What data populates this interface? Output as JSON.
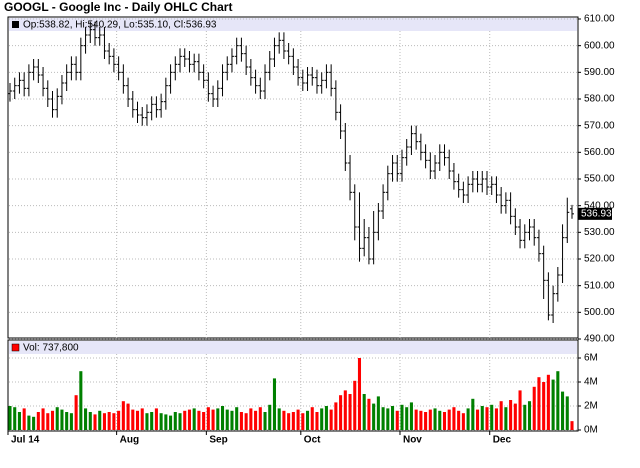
{
  "chart_data": [
    {
      "type": "ohlc",
      "title": "GOOGL - Google Inc - Daily OHLC Chart",
      "legend_text": "Op:538.82, Hi:540.29, Lo:535.10, Cl:536.93",
      "color": "#000000",
      "grid": true,
      "categories": [
        "Jul 14",
        null,
        null,
        null,
        null,
        null,
        null,
        null,
        null,
        null,
        null,
        null,
        null,
        null,
        null,
        null,
        null,
        null,
        null,
        null,
        null,
        null,
        null,
        "Aug",
        null,
        null,
        null,
        null,
        null,
        null,
        null,
        null,
        null,
        null,
        null,
        null,
        null,
        null,
        null,
        null,
        null,
        null,
        "Sep",
        null,
        null,
        null,
        null,
        null,
        null,
        null,
        null,
        null,
        null,
        null,
        null,
        null,
        null,
        null,
        null,
        null,
        null,
        null,
        "Oct",
        null,
        null,
        null,
        null,
        null,
        null,
        null,
        null,
        null,
        null,
        null,
        null,
        null,
        null,
        null,
        null,
        null,
        null,
        null,
        null,
        "Nov",
        null,
        null,
        null,
        null,
        null,
        null,
        null,
        null,
        null,
        null,
        null,
        null,
        null,
        null,
        null,
        null,
        null,
        null,
        "Dec",
        null,
        null,
        null,
        null,
        null,
        null,
        null,
        null,
        null,
        null,
        null,
        null,
        null,
        null,
        null,
        null,
        null
      ],
      "open": [
        582,
        583,
        585,
        587,
        584,
        590,
        592,
        589,
        584,
        580,
        576,
        581,
        586,
        590,
        593,
        590,
        600,
        604,
        606,
        603,
        604,
        598,
        596,
        593,
        590,
        585,
        580,
        576,
        574,
        573,
        575,
        578,
        576,
        579,
        585,
        590,
        593,
        596,
        595,
        593,
        594,
        590,
        587,
        582,
        580,
        584,
        590,
        593,
        596,
        600,
        597,
        592,
        588,
        585,
        583,
        590,
        595,
        600,
        602,
        598,
        596,
        592,
        588,
        586,
        589,
        588,
        585,
        587,
        590,
        584,
        575,
        568,
        556,
        545,
        532,
        524,
        528,
        520,
        530,
        538,
        545,
        552,
        556,
        552,
        558,
        562,
        567,
        564,
        560,
        557,
        553,
        556,
        560,
        558,
        553,
        549,
        546,
        544,
        548,
        550,
        548,
        550,
        547,
        548,
        544,
        540,
        542,
        536,
        532,
        527,
        530,
        532,
        528,
        522,
        512,
        499,
        507,
        514,
        528,
        538.82
      ],
      "high": [
        586,
        588,
        590,
        590,
        593,
        595,
        595,
        592,
        587,
        583,
        584,
        589,
        593,
        596,
        596,
        603,
        607,
        609,
        609,
        607,
        607,
        601,
        599,
        596,
        593,
        588,
        583,
        579,
        577,
        578,
        581,
        581,
        582,
        588,
        593,
        596,
        599,
        599,
        598,
        597,
        597,
        593,
        590,
        585,
        587,
        593,
        596,
        599,
        603,
        603,
        600,
        595,
        591,
        588,
        593,
        598,
        603,
        605,
        605,
        601,
        599,
        595,
        591,
        592,
        592,
        591,
        590,
        593,
        593,
        587,
        578,
        571,
        559,
        548,
        545,
        535,
        532,
        538,
        541,
        548,
        555,
        559,
        559,
        561,
        565,
        570,
        570,
        567,
        563,
        560,
        559,
        563,
        563,
        561,
        556,
        552,
        549,
        551,
        553,
        553,
        553,
        553,
        551,
        551,
        547,
        545,
        545,
        539,
        535,
        533,
        535,
        535,
        531,
        525,
        515,
        510,
        517,
        533,
        543,
        540.29
      ],
      "low": [
        579,
        580,
        582,
        581,
        581,
        587,
        586,
        581,
        577,
        573,
        573,
        578,
        583,
        587,
        587,
        587,
        597,
        601,
        600,
        600,
        595,
        593,
        590,
        587,
        582,
        577,
        573,
        571,
        570,
        570,
        572,
        573,
        573,
        576,
        582,
        587,
        590,
        592,
        590,
        590,
        587,
        584,
        579,
        577,
        577,
        581,
        587,
        590,
        593,
        594,
        589,
        585,
        582,
        580,
        580,
        587,
        592,
        597,
        595,
        593,
        589,
        585,
        583,
        583,
        585,
        582,
        582,
        584,
        581,
        572,
        565,
        553,
        542,
        527,
        519,
        521,
        518,
        518,
        527,
        535,
        542,
        549,
        549,
        549,
        555,
        559,
        561,
        557,
        554,
        550,
        550,
        553,
        555,
        550,
        546,
        543,
        541,
        541,
        545,
        545,
        545,
        544,
        544,
        541,
        537,
        537,
        533,
        529,
        524,
        524,
        527,
        525,
        519,
        505,
        497,
        496,
        504,
        511,
        526,
        535.1
      ],
      "close": [
        583,
        585,
        587,
        584,
        590,
        592,
        589,
        584,
        580,
        576,
        581,
        586,
        590,
        593,
        590,
        600,
        604,
        606,
        603,
        604,
        598,
        596,
        593,
        590,
        585,
        580,
        576,
        574,
        573,
        575,
        578,
        576,
        579,
        585,
        590,
        593,
        596,
        595,
        593,
        594,
        590,
        587,
        582,
        580,
        584,
        590,
        593,
        596,
        600,
        597,
        592,
        588,
        585,
        583,
        590,
        595,
        600,
        602,
        598,
        596,
        592,
        588,
        586,
        589,
        588,
        585,
        587,
        590,
        584,
        575,
        568,
        556,
        545,
        532,
        524,
        528,
        520,
        530,
        538,
        545,
        552,
        556,
        552,
        558,
        562,
        567,
        564,
        560,
        557,
        553,
        556,
        560,
        558,
        553,
        549,
        546,
        544,
        548,
        550,
        548,
        550,
        547,
        548,
        544,
        540,
        542,
        536,
        532,
        527,
        530,
        532,
        528,
        522,
        512,
        499,
        507,
        514,
        528,
        537.5,
        536.93
      ],
      "ylim": [
        490,
        610
      ],
      "yticks": [
        {
          "value": 490,
          "label": "490.00"
        },
        {
          "value": 500,
          "label": "500.00"
        },
        {
          "value": 510,
          "label": "510.00"
        },
        {
          "value": 520,
          "label": "520.00"
        },
        {
          "value": 530,
          "label": "530.00"
        },
        {
          "value": 540,
          "label": "540.00"
        },
        {
          "value": 550,
          "label": "550.00"
        },
        {
          "value": 560,
          "label": "560.00"
        },
        {
          "value": 570,
          "label": "570.00"
        },
        {
          "value": 580,
          "label": "580.00"
        },
        {
          "value": 590,
          "label": "590.00"
        },
        {
          "value": 600,
          "label": "600.00"
        },
        {
          "value": 610,
          "label": "610.00"
        }
      ]
    },
    {
      "type": "bar",
      "legend_text": "Vol: 737,800",
      "up_color": "#008000",
      "down_color": "#ff0000",
      "grid": true,
      "values": [
        2.0,
        1.9,
        1.5,
        1.8,
        1.2,
        1.1,
        1.5,
        1.8,
        1.4,
        1.6,
        1.9,
        1.7,
        1.5,
        1.4,
        2.9,
        4.9,
        1.8,
        1.5,
        1.3,
        1.6,
        1.4,
        1.5,
        1.4,
        1.6,
        2.4,
        2.2,
        1.7,
        1.6,
        1.8,
        1.4,
        1.5,
        1.8,
        1.4,
        1.3,
        1.2,
        1.5,
        1.4,
        1.6,
        1.7,
        1.8,
        1.6,
        1.5,
        1.9,
        1.7,
        1.8,
        2.0,
        1.7,
        1.6,
        1.9,
        1.5,
        1.4,
        1.8,
        1.6,
        1.9,
        1.5,
        2.1,
        4.3,
        1.8,
        1.6,
        1.4,
        1.5,
        1.7,
        1.4,
        1.6,
        1.9,
        1.5,
        1.8,
        2.0,
        1.7,
        2.3,
        2.9,
        3.3,
        3.0,
        4.1,
        6.0,
        3.0,
        2.6,
        2.2,
        2.8,
        1.9,
        1.8,
        2.0,
        1.6,
        2.1,
        1.9,
        2.3,
        1.7,
        1.6,
        1.5,
        1.7,
        1.8,
        1.6,
        1.5,
        1.7,
        1.9,
        1.6,
        1.4,
        1.8,
        2.6,
        1.7,
        2.0,
        1.9,
        2.1,
        1.8,
        2.4,
        1.9,
        2.5,
        2.2,
        3.3,
        2.1,
        2.4,
        3.6,
        4.4,
        4.0,
        4.6,
        4.2,
        4.9,
        3.2,
        2.8,
        0.7378
      ],
      "ylim": [
        0,
        7.5
      ],
      "yticks": [
        {
          "value": 0,
          "label": "0M"
        },
        {
          "value": 2,
          "label": "2M"
        },
        {
          "value": 4,
          "label": "4M"
        },
        {
          "value": 6,
          "label": "6M"
        }
      ]
    }
  ]
}
